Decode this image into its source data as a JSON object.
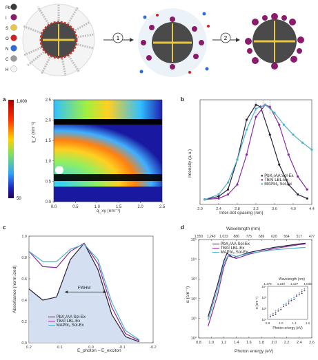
{
  "top": {
    "legend": [
      {
        "symbol": "Pb",
        "color": "#3a3a3a"
      },
      {
        "symbol": "I",
        "color": "#8b1a6b"
      },
      {
        "symbol": "S",
        "color": "#e8c840"
      },
      {
        "symbol": "O",
        "color": "#d22020"
      },
      {
        "symbol": "N",
        "color": "#2b6cd8"
      },
      {
        "symbol": "C",
        "color": "#9a9a9a"
      },
      {
        "symbol": "H",
        "color": "#f2f2f2"
      }
    ],
    "step1": "1",
    "step2": "2"
  },
  "panels": {
    "a": {
      "letter": "a"
    },
    "b": {
      "letter": "b"
    },
    "c": {
      "letter": "c"
    },
    "d": {
      "letter": "d"
    }
  },
  "colors": {
    "pbx": "#2a1e3a",
    "tbai": "#8a2aa0",
    "mapbi": "#4fb3c8",
    "fill": "#c9d8ee"
  },
  "chart_data": [
    {
      "panel": "a",
      "type": "heatmap",
      "xlabel": "q_xy (nm⁻¹)",
      "ylabel": "q_z (nm⁻¹)",
      "xlim": [
        0,
        2.5
      ],
      "ylim": [
        0,
        2.5
      ],
      "xticks": [
        "0.0",
        "0.5",
        "1.0",
        "1.5",
        "2.0",
        "2.5"
      ],
      "yticks": [
        "0.0",
        "0.5",
        "1.0",
        "1.5",
        "2.0",
        "2.5"
      ],
      "colorbar": {
        "max": "1,000",
        "min": "50"
      }
    },
    {
      "panel": "b",
      "type": "line",
      "xlabel": "Inter-dot spacing (nm)",
      "ylabel": "Intensity (a.u.)",
      "xlim": [
        2.0,
        4.4
      ],
      "xticks": [
        "2.0",
        "2.4",
        "2.8",
        "3.2",
        "3.6",
        "4.0",
        "4.4"
      ],
      "series": [
        {
          "name": "PbX₂/AA Sol-Ex",
          "x": [
            2.1,
            2.4,
            2.6,
            2.8,
            3.0,
            3.2,
            3.3,
            3.5,
            3.7,
            3.9,
            4.1,
            4.3
          ],
          "y": [
            0.05,
            0.08,
            0.15,
            0.45,
            0.85,
            1.0,
            0.98,
            0.7,
            0.4,
            0.2,
            0.1,
            0.06
          ]
        },
        {
          "name": "TBAI LBL-Ex",
          "x": [
            2.1,
            2.4,
            2.6,
            2.8,
            3.0,
            3.2,
            3.4,
            3.5,
            3.7,
            3.9,
            4.1,
            4.3
          ],
          "y": [
            0.05,
            0.06,
            0.1,
            0.2,
            0.5,
            0.88,
            1.0,
            0.98,
            0.8,
            0.5,
            0.28,
            0.15
          ]
        },
        {
          "name": "MAPbI₃ Sol-Ex",
          "x": [
            2.1,
            2.4,
            2.6,
            2.8,
            3.0,
            3.2,
            3.4,
            3.6,
            3.8,
            4.0,
            4.2,
            4.4
          ],
          "y": [
            0.05,
            0.1,
            0.22,
            0.45,
            0.75,
            0.96,
            1.0,
            0.92,
            0.8,
            0.7,
            0.62,
            0.55
          ]
        }
      ]
    },
    {
      "panel": "c",
      "type": "line",
      "xlabel": "E_photon – E_exciton",
      "ylabel": "Absorbance (norm.ized)",
      "xlim": [
        0.2,
        -0.25
      ],
      "ylim": [
        0,
        1.0
      ],
      "xticks": [
        "0.2",
        "0.1",
        "0.0",
        "-0.1",
        "-0.2"
      ],
      "yticks": [
        "0.0",
        "0.2",
        "0.4",
        "0.6",
        "0.8",
        "1.0"
      ],
      "annotation": "FWHM",
      "series": [
        {
          "name": "PbX₂/AA Sol-Ex",
          "x": [
            0.2,
            0.15,
            0.1,
            0.05,
            0.0,
            -0.05,
            -0.1,
            -0.15,
            -0.2
          ],
          "y": [
            0.53,
            0.42,
            0.45,
            0.82,
            0.98,
            0.72,
            0.28,
            0.06,
            0.01
          ]
        },
        {
          "name": "TBAI LBL-Ex",
          "x": [
            0.2,
            0.15,
            0.1,
            0.05,
            0.0,
            -0.05,
            -0.1,
            -0.15,
            -0.2
          ],
          "y": [
            0.9,
            0.75,
            0.74,
            0.9,
            0.98,
            0.78,
            0.35,
            0.09,
            0.02
          ]
        },
        {
          "name": "MAPbI₃ Sol-Ex",
          "x": [
            0.2,
            0.15,
            0.1,
            0.05,
            0.0,
            -0.05,
            -0.1,
            -0.15,
            -0.2
          ],
          "y": [
            0.9,
            0.8,
            0.8,
            0.92,
            0.97,
            0.82,
            0.4,
            0.12,
            0.03
          ]
        }
      ]
    },
    {
      "panel": "d",
      "type": "line",
      "xlabel": "Photon energy (eV)",
      "ylabel": "α (cm⁻¹)",
      "top_xlabel": "Wavelength (nm)",
      "xlim": [
        0.8,
        2.6
      ],
      "xticks": [
        "0.8",
        "1.0",
        "1.2",
        "1.4",
        "1.6",
        "1.8",
        "2.0",
        "2.2",
        "2.4",
        "2.6"
      ],
      "top_ticks": [
        "1,550",
        "1,240",
        "1,033",
        "886",
        "775",
        "689",
        "620",
        "564",
        "517",
        "477"
      ],
      "yticks": [
        "10⁰",
        "10¹",
        "10²",
        "10³",
        "10⁴",
        "10⁵"
      ],
      "ylog": true,
      "inset": {
        "xlabel": "Photon energy (eV)",
        "top_xlabel": "Wavelength (nm)",
        "top_ticks": [
          "1,378",
          "1,240",
          "1,127",
          "1,033"
        ],
        "xticks": [
          "0.9",
          "1.0",
          "1.1",
          "1.2"
        ],
        "yticks": [
          "10¹",
          "10²",
          "10³",
          "10⁴"
        ],
        "ylabel": "α (cm⁻¹)"
      },
      "series": [
        {
          "name": "PbX₂/AA Sol-Ex",
          "x": [
            0.95,
            1.1,
            1.2,
            1.25,
            1.35,
            1.6,
            2.0,
            2.4,
            2.5
          ],
          "y": [
            12,
            500,
            8000,
            20000,
            12000,
            22000,
            40000,
            60000,
            65000
          ]
        },
        {
          "name": "TBAI LBL-Ex",
          "x": [
            0.95,
            1.1,
            1.2,
            1.27,
            1.4,
            1.6,
            2.0,
            2.4,
            2.5
          ],
          "y": [
            4,
            150,
            4000,
            15000,
            11000,
            18000,
            35000,
            55000,
            60000
          ]
        },
        {
          "name": "MAPbI₃ Sol-Ex",
          "x": [
            0.95,
            1.1,
            1.2,
            1.28,
            1.4,
            1.6,
            2.0,
            2.4,
            2.5
          ],
          "y": [
            8,
            300,
            6000,
            18000,
            14000,
            20000,
            30000,
            38000,
            40000
          ]
        }
      ]
    }
  ]
}
